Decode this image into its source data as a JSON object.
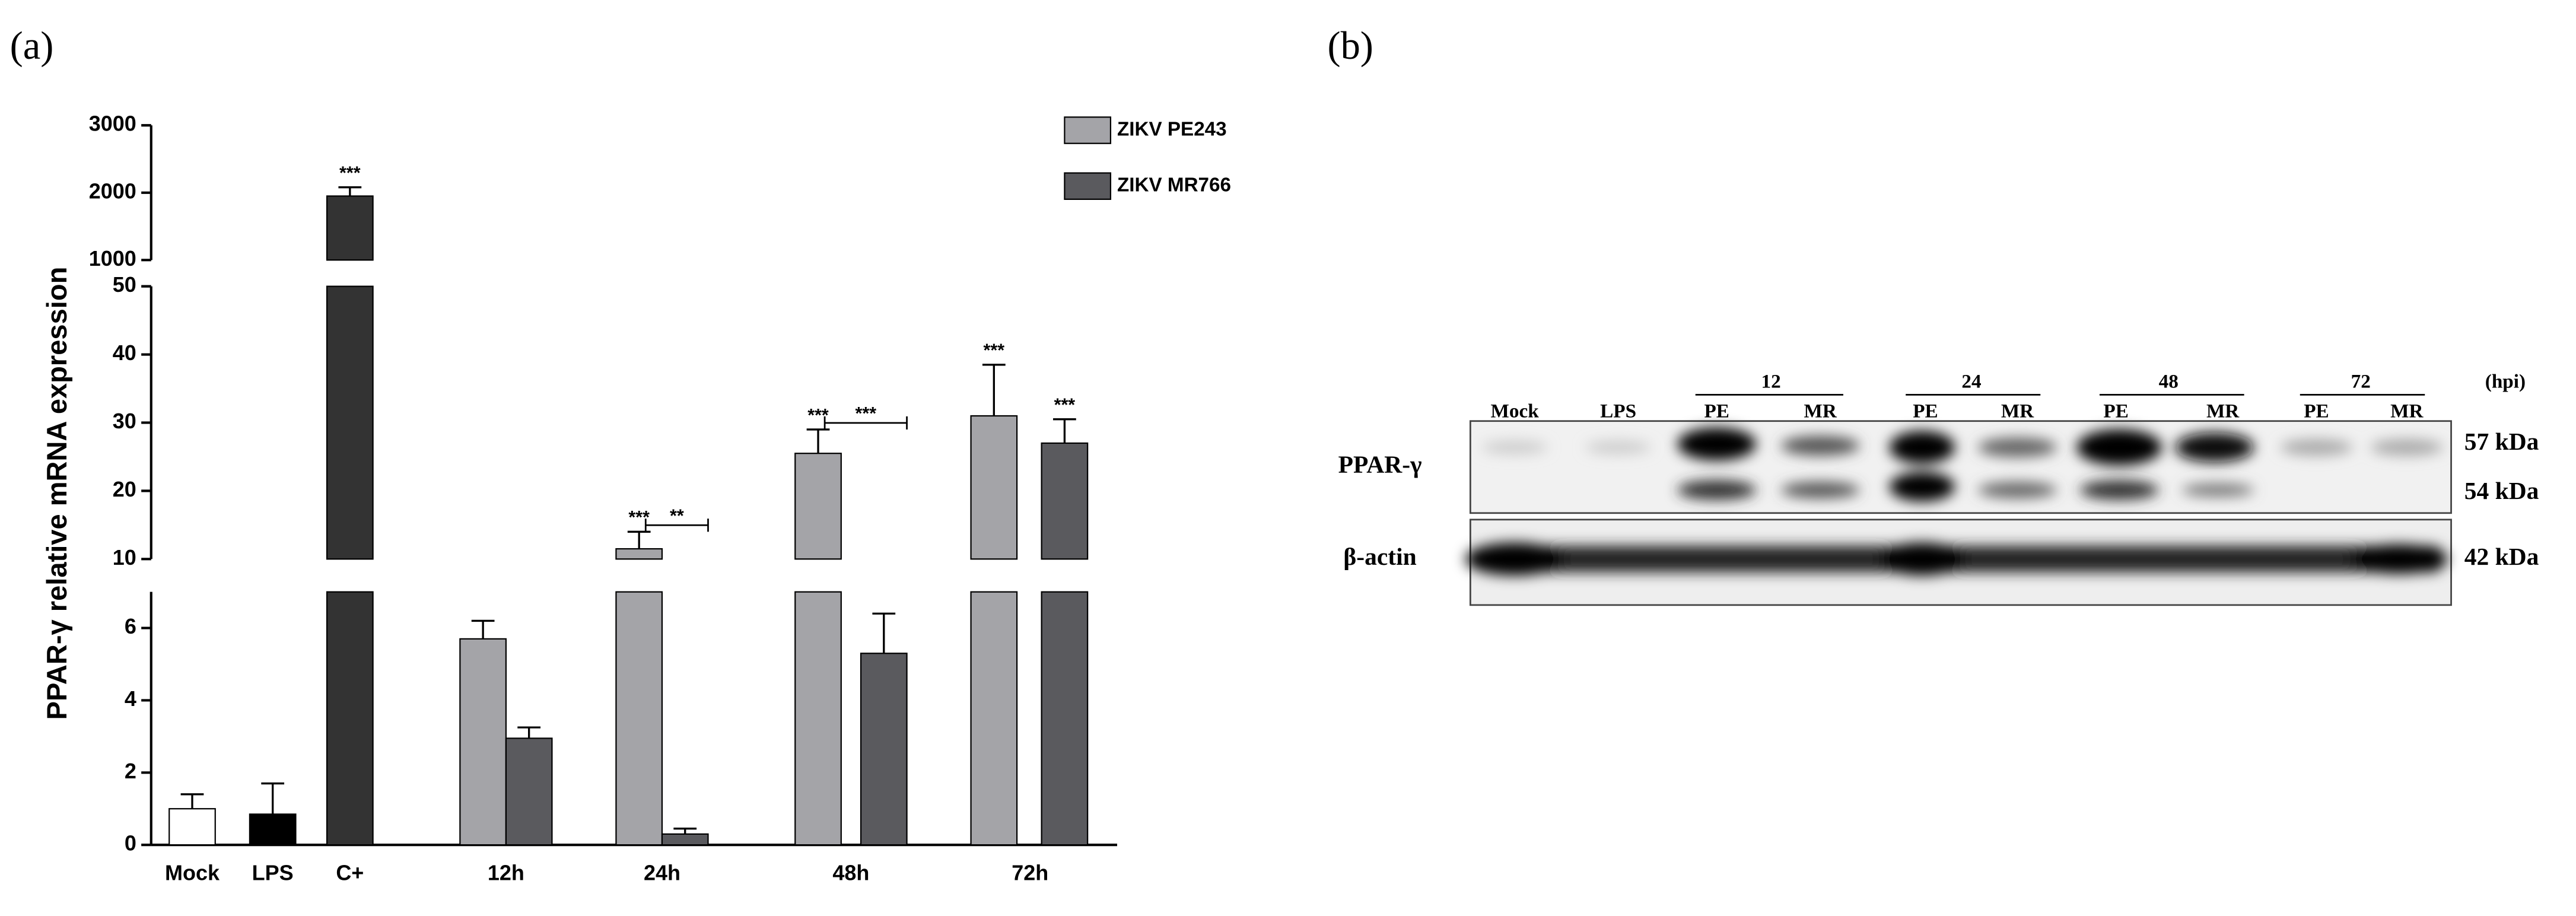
{
  "panel_labels": [
    "(a)",
    "(b)"
  ],
  "chart_data": {
    "type": "bar",
    "y_label": "PPAR-γ relative mRNA expression",
    "categories": [
      "Mock",
      "LPS",
      "C+",
      "12h",
      "24h",
      "48h",
      "72h"
    ],
    "y_segments": [
      {
        "ylim": [
          0,
          7
        ],
        "yticks": [
          0,
          2,
          4,
          6
        ]
      },
      {
        "ylim": [
          10,
          50
        ],
        "yticks": [
          10,
          20,
          30,
          40,
          50
        ]
      },
      {
        "ylim": [
          1000,
          3000
        ],
        "yticks": [
          1000,
          2000,
          3000
        ]
      }
    ],
    "controls": {
      "values": [
        1.0,
        0.85,
        1950,
        null,
        null,
        null,
        null
      ],
      "errors": [
        0.4,
        0.85,
        130,
        null,
        null,
        null,
        null
      ],
      "colors": [
        "#ffffff",
        "#000000",
        "#333333",
        null,
        null,
        null,
        null
      ],
      "stars": [
        null,
        null,
        "***",
        null,
        null,
        null,
        null
      ]
    },
    "series": [
      {
        "name": "ZIKV PE243",
        "color": "#a4a4a8",
        "values": [
          null,
          null,
          null,
          5.7,
          11.5,
          25.5,
          31
        ],
        "errors": [
          null,
          null,
          null,
          0.5,
          2.5,
          3.5,
          7.5
        ],
        "stars": [
          null,
          null,
          null,
          null,
          "***",
          "***",
          "***"
        ]
      },
      {
        "name": "ZIKV MR766",
        "color": "#5a5a5e",
        "values": [
          null,
          null,
          null,
          2.95,
          0.3,
          5.3,
          27
        ],
        "errors": [
          null,
          null,
          null,
          0.3,
          0.15,
          1.1,
          3.5
        ],
        "stars": [
          null,
          null,
          null,
          null,
          null,
          null,
          "***"
        ]
      }
    ],
    "comparison_labels": [
      null,
      null,
      null,
      null,
      "**",
      "***",
      null
    ]
  },
  "blot": {
    "groups": [
      "12",
      "24",
      "48",
      "72"
    ],
    "unit": "(hpi)",
    "lanes": [
      "Mock",
      "LPS",
      "PE",
      "MR",
      "PE",
      "MR",
      "PE",
      "MR",
      "PE",
      "MR"
    ],
    "rows": [
      "PPAR-γ",
      "β-actin"
    ],
    "sizes": [
      "57 kDa",
      "54 kDa",
      "42 kDa"
    ]
  }
}
